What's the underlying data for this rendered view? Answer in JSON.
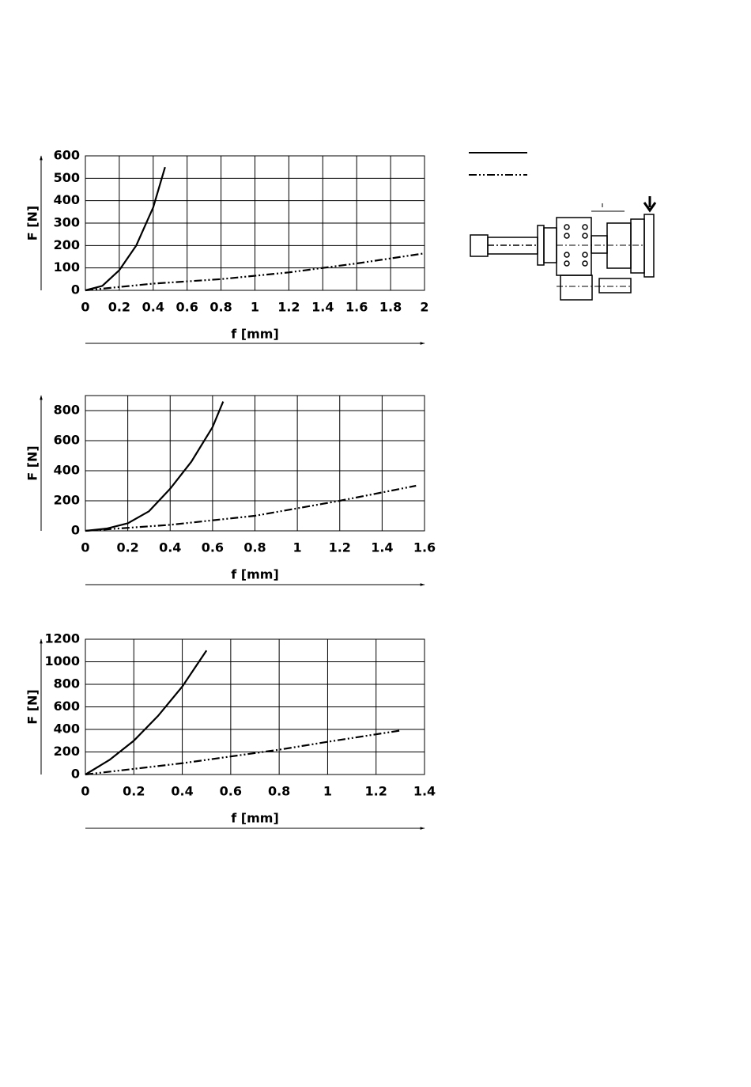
{
  "chart_data": [
    {
      "type": "line",
      "y_label": "F [N]",
      "x_label": "f [mm]",
      "xlim": [
        0,
        2
      ],
      "xticks": [
        0,
        0.2,
        0.4,
        0.6,
        0.8,
        1,
        1.2,
        1.4,
        1.6,
        1.8,
        2
      ],
      "ylim": [
        0,
        600
      ],
      "yticks": [
        0,
        100,
        200,
        300,
        400,
        500,
        600
      ],
      "grid": true,
      "series": [
        {
          "color": "#000000",
          "line_style": "solid",
          "x": [
            0,
            0.1,
            0.2,
            0.3,
            0.4,
            0.47
          ],
          "values": [
            0,
            20,
            90,
            200,
            370,
            550
          ]
        },
        {
          "color": "#000000",
          "line_style": "dashdot",
          "x": [
            0,
            0.4,
            0.8,
            1.2,
            1.6,
            2
          ],
          "values": [
            0,
            30,
            50,
            80,
            120,
            165
          ]
        }
      ]
    },
    {
      "type": "line",
      "y_label": "F [N]",
      "x_label": "f [mm]",
      "xlim": [
        0,
        1.6
      ],
      "xticks": [
        0,
        0.2,
        0.4,
        0.6,
        0.8,
        1,
        1.2,
        1.4,
        1.6
      ],
      "ylim": [
        0,
        900
      ],
      "yticks": [
        0,
        200,
        400,
        600,
        800
      ],
      "grid": true,
      "series": [
        {
          "color": "#000000",
          "line_style": "solid",
          "x": [
            0,
            0.1,
            0.2,
            0.3,
            0.4,
            0.5,
            0.6,
            0.65
          ],
          "values": [
            0,
            15,
            50,
            130,
            280,
            460,
            690,
            860
          ]
        },
        {
          "color": "#000000",
          "line_style": "dashdot",
          "x": [
            0,
            0.4,
            0.8,
            1.2,
            1.56
          ],
          "values": [
            0,
            40,
            100,
            200,
            300
          ]
        }
      ]
    },
    {
      "type": "line",
      "y_label": "F [N]",
      "x_label": "f [mm]",
      "xlim": [
        0,
        1.4
      ],
      "xticks": [
        0,
        0.2,
        0.4,
        0.6,
        0.8,
        1,
        1.2,
        1.4
      ],
      "ylim": [
        0,
        1200
      ],
      "yticks": [
        0,
        200,
        400,
        600,
        800,
        1000,
        1200
      ],
      "grid": true,
      "series": [
        {
          "color": "#000000",
          "line_style": "solid",
          "x": [
            0,
            0.1,
            0.2,
            0.3,
            0.4,
            0.5
          ],
          "values": [
            0,
            130,
            300,
            520,
            780,
            1100
          ]
        },
        {
          "color": "#000000",
          "line_style": "dashdot",
          "x": [
            0,
            0.2,
            0.4,
            0.6,
            0.8,
            1,
            1.3
          ],
          "values": [
            0,
            50,
            100,
            160,
            220,
            290,
            390
          ]
        }
      ]
    }
  ]
}
